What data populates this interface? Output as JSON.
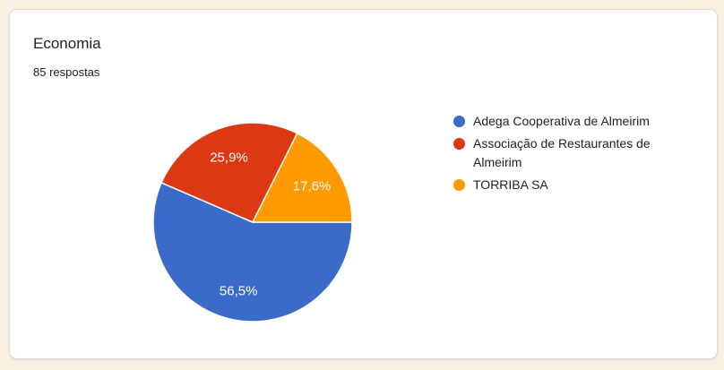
{
  "page": {
    "background_color": "#F9F0E1",
    "card_background": "#FFFFFF",
    "card_border_color": "#DBDBD9"
  },
  "header": {
    "title": "Economia",
    "subtitle": "85 respostas"
  },
  "chart_data": {
    "type": "pie",
    "title": "Economia",
    "responses_count": 85,
    "legend_position": "right",
    "start_angle_deg": 90,
    "label_color": "#FFFFFF",
    "slice_stroke": "#FFFFFF",
    "slices": [
      {
        "name": "Adega Cooperativa de Almeirim",
        "value": 56.5,
        "label": "56,5%",
        "color": "#3B6BC9"
      },
      {
        "name": "Associação de Restaurantes de Almeirim",
        "value": 25.9,
        "label": "25,9%",
        "color": "#DC3912"
      },
      {
        "name": "TORRIBA SA",
        "value": 17.6,
        "label": "17,6%",
        "color": "#FF9900"
      }
    ]
  }
}
